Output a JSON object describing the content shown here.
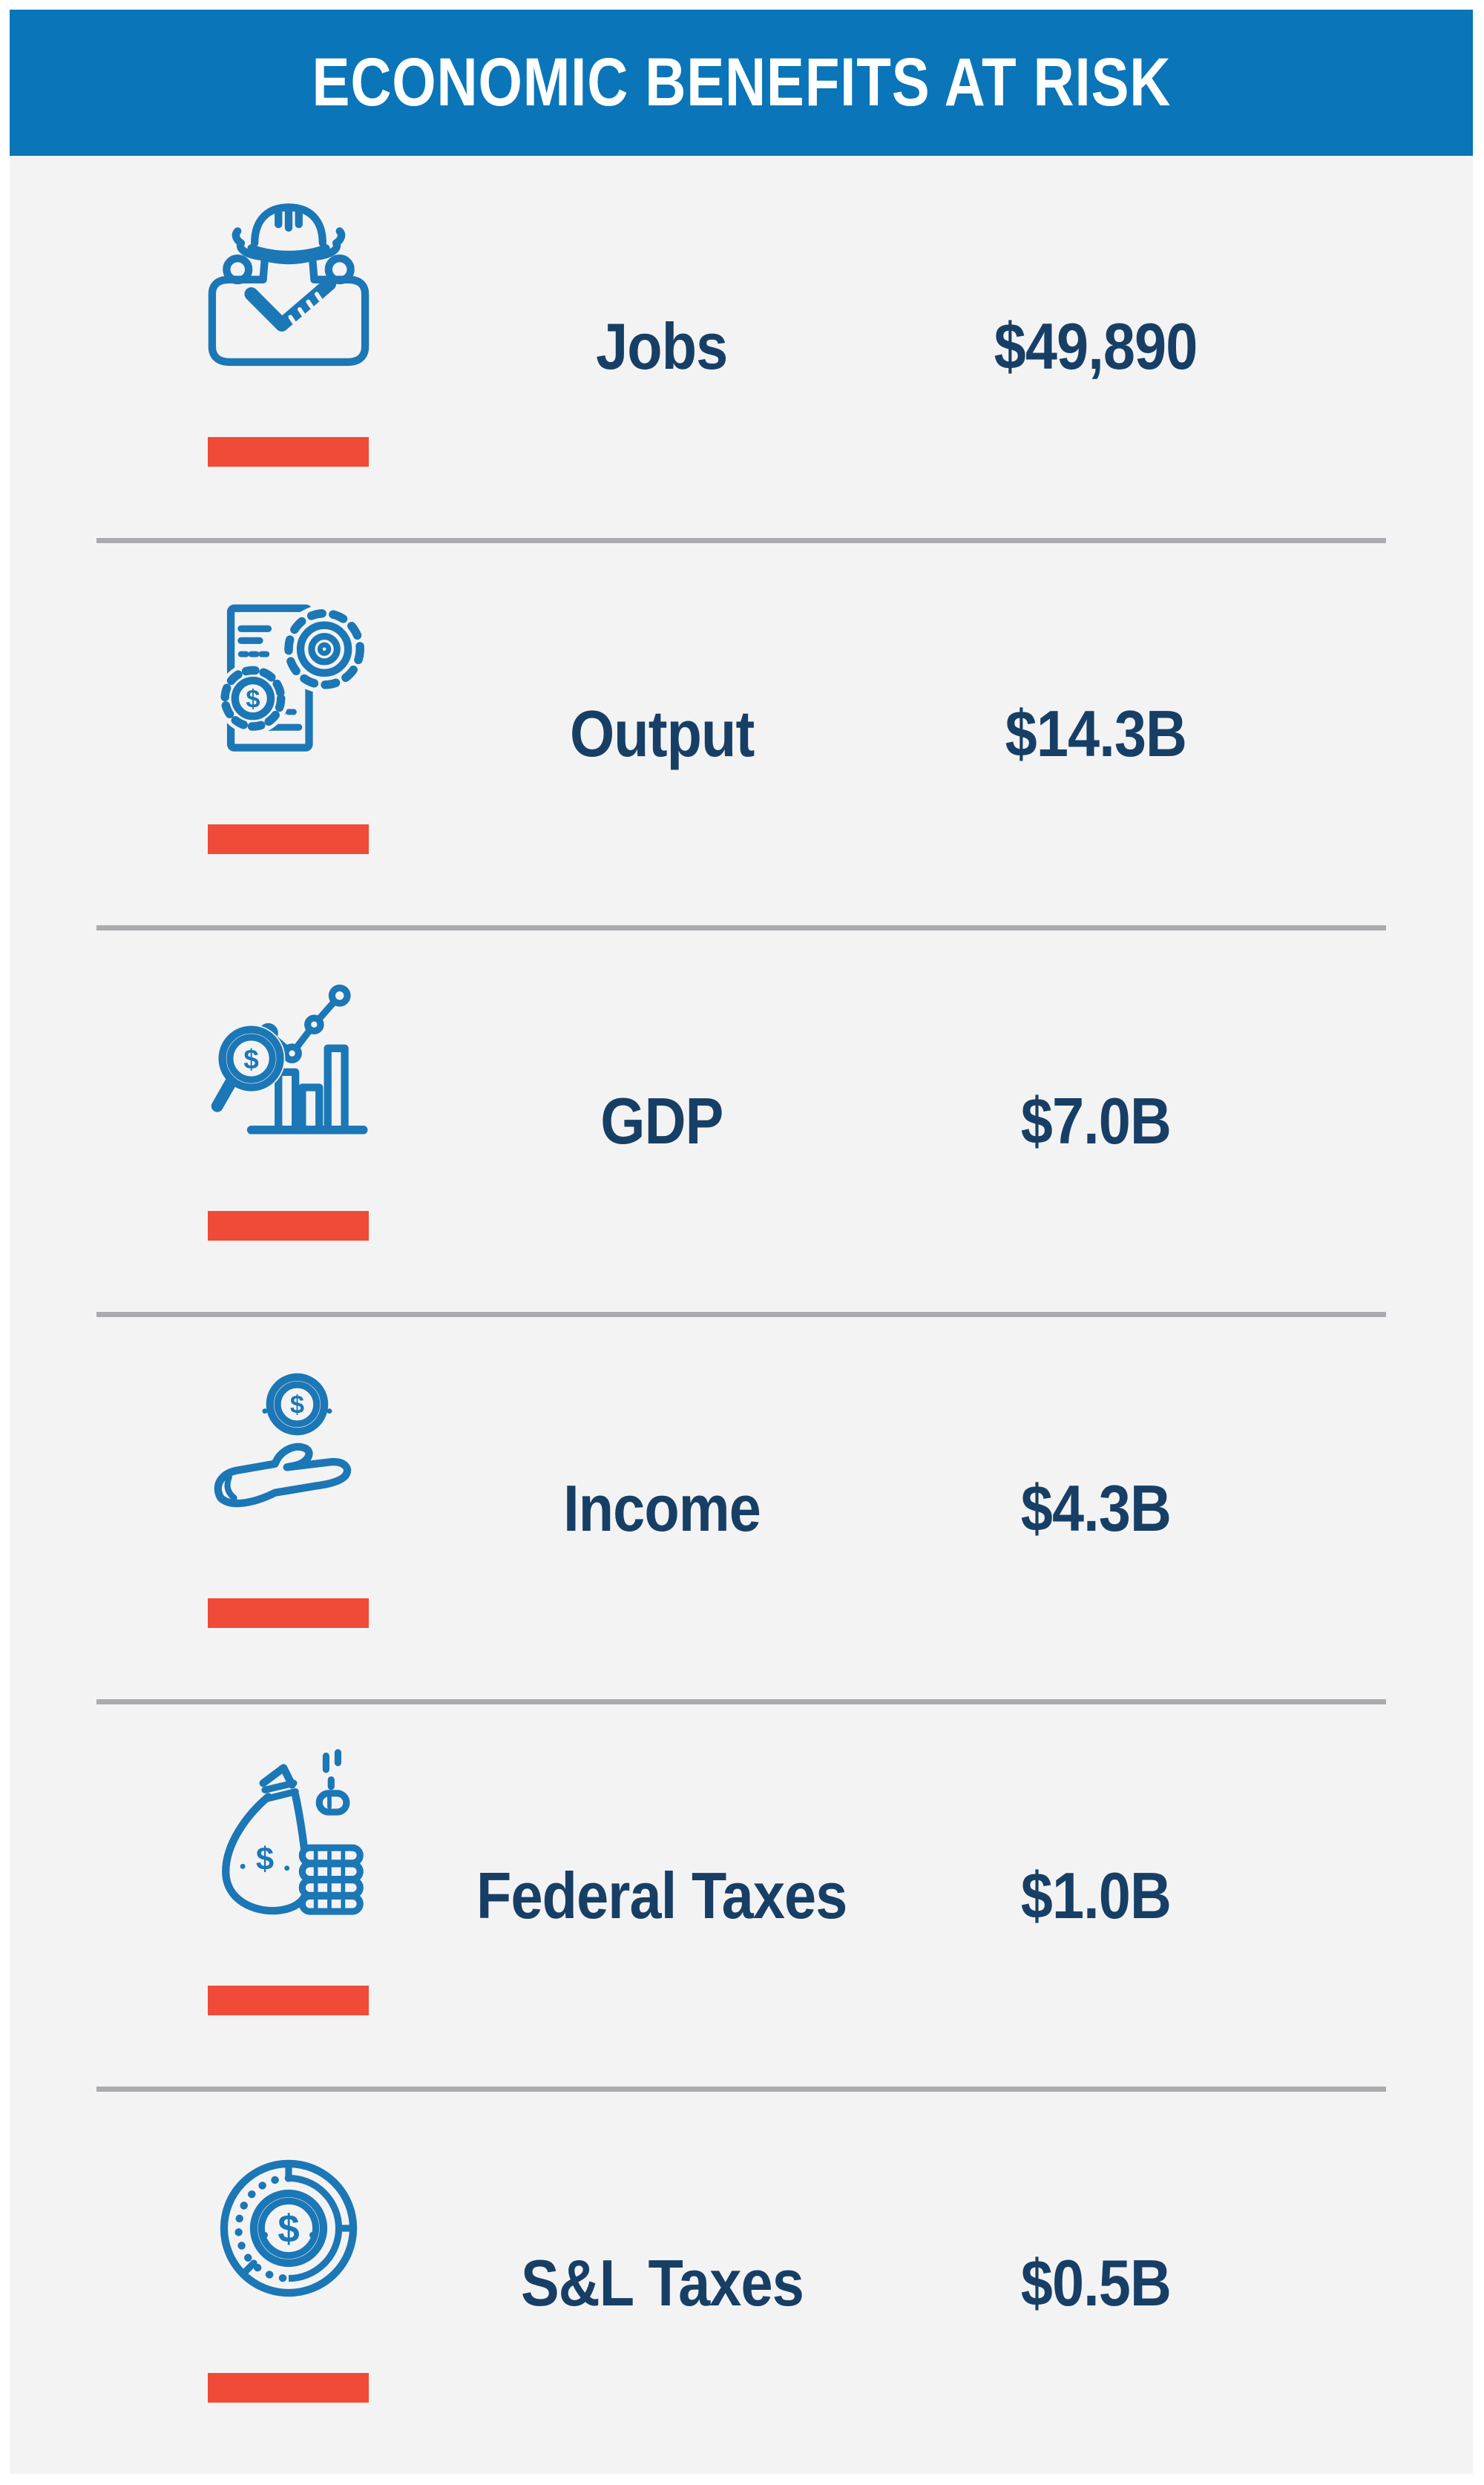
{
  "header": {
    "title": "ECONOMIC BENEFITS AT RISK"
  },
  "rows": [
    {
      "label": "Jobs",
      "value": "$49,890",
      "icon": "worker-hard-hat-icon"
    },
    {
      "label": "Output",
      "value": "$14.3B",
      "icon": "gears-document-icon"
    },
    {
      "label": "GDP",
      "value": "$7.0B",
      "icon": "magnifier-bar-chart-icon"
    },
    {
      "label": "Income",
      "value": "$4.3B",
      "icon": "hand-coin-icon"
    },
    {
      "label": "Federal Taxes",
      "value": "$1.0B",
      "icon": "money-bag-coins-icon"
    },
    {
      "label": "S&L Taxes",
      "value": "$0.5B",
      "icon": "coin-pie-chart-icon"
    }
  ],
  "colors": {
    "header_bg": "#0a75b8",
    "icon_blue": "#1b77b6",
    "text_navy": "#173f66",
    "accent_red": "#ef4b38",
    "card_bg": "#f4f3f4",
    "divider_gray": "#a9abae"
  },
  "chart_data": {
    "type": "table",
    "title": "ECONOMIC BENEFITS AT RISK",
    "categories": [
      "Jobs",
      "Output",
      "GDP",
      "Income",
      "Federal Taxes",
      "S&L Taxes"
    ],
    "values": [
      "$49,890",
      "$14.3B",
      "$7.0B",
      "$4.3B",
      "$1.0B",
      "$0.5B"
    ],
    "legend_position": "none",
    "grid": false
  }
}
